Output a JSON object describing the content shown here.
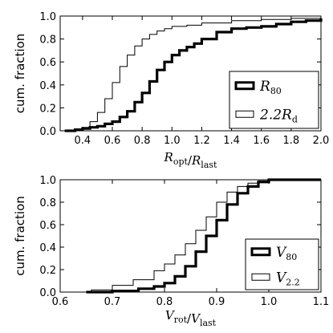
{
  "chart_data": [
    {
      "type": "line",
      "step": true,
      "xlabel": "R_opt / R_last",
      "xlabel_parts": [
        {
          "t": "R",
          "sub": "opt"
        },
        {
          "t": "/",
          "sub": ""
        },
        {
          "t": "R",
          "sub": "last"
        }
      ],
      "ylabel": "cum. fraction",
      "xlim": [
        0.25,
        2.0
      ],
      "ylim": [
        0.0,
        1.0
      ],
      "xticks": [
        0.4,
        0.6,
        0.8,
        1.0,
        1.2,
        1.4,
        1.6,
        1.8,
        2.0
      ],
      "xtick_labels": [
        "0.4",
        "0.6",
        "0.8",
        "1.0",
        "1.2",
        "1.4",
        "1.6",
        "1.8",
        "2.0"
      ],
      "yticks": [
        0.0,
        0.2,
        0.4,
        0.6,
        0.8,
        1.0
      ],
      "ytick_labels": [
        "0.0",
        "0.2",
        "0.4",
        "0.6",
        "0.8",
        "1.0"
      ],
      "legend_position": "bottom-right",
      "series": [
        {
          "name": "R_80",
          "label_main": "R",
          "label_sub": "80",
          "line_width": "thick",
          "x": [
            0.28,
            0.35,
            0.4,
            0.45,
            0.5,
            0.55,
            0.6,
            0.65,
            0.7,
            0.75,
            0.8,
            0.85,
            0.9,
            0.95,
            1.0,
            1.05,
            1.1,
            1.15,
            1.2,
            1.3,
            1.4,
            1.5,
            1.6,
            1.7,
            1.8,
            1.9,
            2.0
          ],
          "y": [
            0.0,
            0.01,
            0.02,
            0.03,
            0.04,
            0.06,
            0.08,
            0.12,
            0.17,
            0.25,
            0.33,
            0.43,
            0.53,
            0.6,
            0.66,
            0.7,
            0.73,
            0.76,
            0.8,
            0.86,
            0.89,
            0.9,
            0.91,
            0.93,
            0.95,
            0.96,
            0.98
          ]
        },
        {
          "name": "2.2R_d",
          "label_main": "2.2R",
          "label_sub": "d",
          "line_width": "thin",
          "x": [
            0.28,
            0.35,
            0.4,
            0.45,
            0.5,
            0.55,
            0.6,
            0.65,
            0.7,
            0.75,
            0.8,
            0.85,
            0.9,
            0.95,
            1.0,
            1.1,
            1.2,
            1.4,
            1.6,
            1.8,
            2.0
          ],
          "y": [
            0.0,
            0.01,
            0.03,
            0.08,
            0.16,
            0.28,
            0.42,
            0.56,
            0.66,
            0.74,
            0.8,
            0.84,
            0.87,
            0.89,
            0.91,
            0.92,
            0.94,
            0.96,
            0.97,
            0.98,
            0.99
          ]
        }
      ]
    },
    {
      "type": "line",
      "step": true,
      "xlabel": "V_rot / V_last",
      "xlabel_parts": [
        {
          "t": "V",
          "sub": "rot"
        },
        {
          "t": "/",
          "sub": ""
        },
        {
          "t": "V",
          "sub": "last"
        }
      ],
      "ylabel": "cum. fraction",
      "xlim": [
        0.6,
        1.1
      ],
      "ylim": [
        0.0,
        1.0
      ],
      "xticks": [
        0.6,
        0.7,
        0.8,
        0.9,
        1.0,
        1.1
      ],
      "xtick_labels": [
        "0.6",
        "0.7",
        "0.8",
        "0.9",
        "1.0",
        "1.1"
      ],
      "yticks": [
        0.0,
        0.2,
        0.4,
        0.6,
        0.8,
        1.0
      ],
      "ytick_labels": [
        "0.0",
        "0.2",
        "0.4",
        "0.6",
        "0.8",
        "1.0"
      ],
      "legend_position": "bottom-right",
      "series": [
        {
          "name": "V_80",
          "label_main": "V",
          "label_sub": "80",
          "line_width": "thick",
          "x": [
            0.65,
            0.7,
            0.75,
            0.78,
            0.8,
            0.82,
            0.84,
            0.86,
            0.88,
            0.9,
            0.92,
            0.94,
            0.96,
            0.98,
            1.0,
            1.1
          ],
          "y": [
            0.0,
            0.01,
            0.03,
            0.05,
            0.08,
            0.14,
            0.23,
            0.36,
            0.5,
            0.64,
            0.78,
            0.88,
            0.94,
            0.98,
            1.0,
            1.0
          ]
        },
        {
          "name": "V_2.2",
          "label_main": "V",
          "label_sub": "2.2",
          "line_width": "thin",
          "x": [
            0.63,
            0.66,
            0.7,
            0.74,
            0.78,
            0.8,
            0.82,
            0.84,
            0.86,
            0.88,
            0.9,
            0.92,
            0.94,
            0.96,
            0.98,
            1.0,
            1.1
          ],
          "y": [
            0.0,
            0.02,
            0.06,
            0.11,
            0.19,
            0.25,
            0.33,
            0.43,
            0.55,
            0.67,
            0.8,
            0.89,
            0.94,
            0.97,
            0.99,
            1.0,
            1.0
          ]
        }
      ]
    }
  ]
}
